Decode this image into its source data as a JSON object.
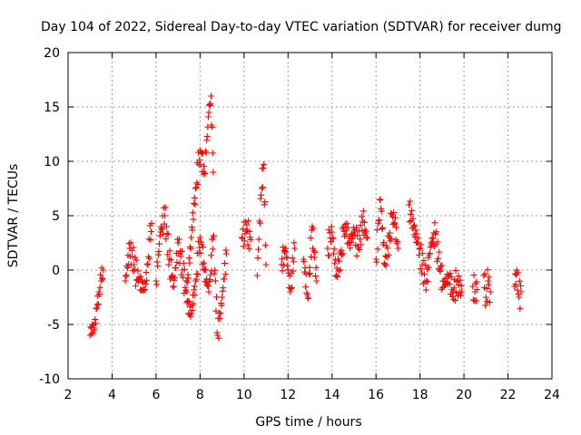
{
  "chart_data": {
    "type": "scatter",
    "title": "Day 104 of 2022, Sidereal Day-to-day VTEC variation (SDTVAR) for receiver dumg",
    "xlabel": "GPS time / hours",
    "ylabel": "SDTVAR / TECUs",
    "xlim": [
      2,
      24
    ],
    "ylim": [
      -10,
      20
    ],
    "x_ticks": [
      "2",
      "4",
      "6",
      "8",
      "10",
      "12",
      "14",
      "16",
      "18",
      "20",
      "22",
      "24"
    ],
    "y_ticks": [
      "-10",
      "-5",
      "0",
      "5",
      "10",
      "15",
      "20"
    ],
    "grid": true,
    "marker": "+",
    "color": "#ff0000",
    "series": [
      {
        "name": "SDTVAR",
        "segments": [
          {
            "x": [
              3.0,
              3.1,
              3.2,
              3.3,
              3.4,
              3.5,
              3.6
            ],
            "y": [
              -6.0,
              -5.0,
              -5.5,
              -3.5,
              -2.0,
              -1.0,
              0.0
            ]
          },
          {
            "x": [
              4.6,
              4.8,
              5.0,
              5.2,
              5.5,
              5.6,
              5.8
            ],
            "y": [
              -1.0,
              2.0,
              0.5,
              -1.0,
              -1.8,
              0.5,
              4.3
            ]
          },
          {
            "x": [
              6.0,
              6.2,
              6.4,
              6.6,
              6.8,
              7.0,
              7.2,
              7.4,
              7.6,
              7.8,
              8.0,
              8.2,
              8.4,
              8.5,
              8.6
            ],
            "y": [
              -1.0,
              3.5,
              5.0,
              1.0,
              -1.5,
              2.5,
              0.0,
              -2.0,
              3.0,
              7.5,
              11.0,
              9.0,
              14.5,
              16.0,
              9.0
            ]
          },
          {
            "x": [
              7.4,
              7.6,
              7.8,
              8.0,
              8.2,
              8.4,
              8.6,
              8.8,
              9.0,
              9.2
            ],
            "y": [
              -3.0,
              -4.0,
              -1.0,
              3.0,
              0.0,
              -2.0,
              3.0,
              -6.0,
              -2.5,
              1.5
            ]
          },
          {
            "x": [
              9.9,
              10.1,
              10.3
            ],
            "y": [
              3.0,
              3.6,
              2.8
            ]
          },
          {
            "x": [
              10.6,
              10.7,
              10.8,
              10.9,
              11.0
            ],
            "y": [
              -0.5,
              4.5,
              7.5,
              9.7,
              0.5
            ]
          },
          {
            "x": [
              11.7,
              11.9,
              12.1,
              12.3
            ],
            "y": [
              0.5,
              2.0,
              -2.0,
              2.0
            ]
          },
          {
            "x": [
              12.7,
              12.9,
              13.1,
              13.3
            ],
            "y": [
              1.0,
              -2.5,
              4.0,
              -1.0
            ]
          },
          {
            "x": [
              13.8,
              14.0,
              14.2,
              14.4,
              14.6,
              14.8,
              15.0,
              15.2,
              15.4,
              15.6
            ],
            "y": [
              2.0,
              3.5,
              -0.5,
              1.5,
              4.2,
              2.5,
              3.5,
              2.0,
              4.5,
              3.0
            ]
          },
          {
            "x": [
              16.0,
              16.2,
              16.4,
              16.6,
              16.8,
              17.0
            ],
            "y": [
              1.0,
              6.5,
              0.5,
              3.0,
              5.3,
              2.0
            ]
          },
          {
            "x": [
              17.5,
              17.7,
              17.9,
              18.1,
              18.3,
              18.5,
              18.7,
              18.9,
              19.1,
              19.3,
              19.5,
              19.7,
              19.9
            ],
            "y": [
              6.0,
              4.0,
              2.5,
              0.5,
              -1.0,
              2.5,
              3.3,
              0.0,
              -1.5,
              -0.5,
              -2.0,
              -1.0,
              -2.0
            ]
          },
          {
            "x": [
              20.4,
              20.5,
              20.6
            ],
            "y": [
              -1.5,
              -2.0,
              -1.8
            ]
          },
          {
            "x": [
              20.9,
              21.0,
              21.1,
              21.2
            ],
            "y": [
              -0.5,
              -2.5,
              -1.0,
              -2.0
            ]
          },
          {
            "x": [
              22.3,
              22.4,
              22.5,
              22.6
            ],
            "y": [
              -1.5,
              0.0,
              -2.5,
              -2.0
            ]
          }
        ]
      }
    ]
  }
}
